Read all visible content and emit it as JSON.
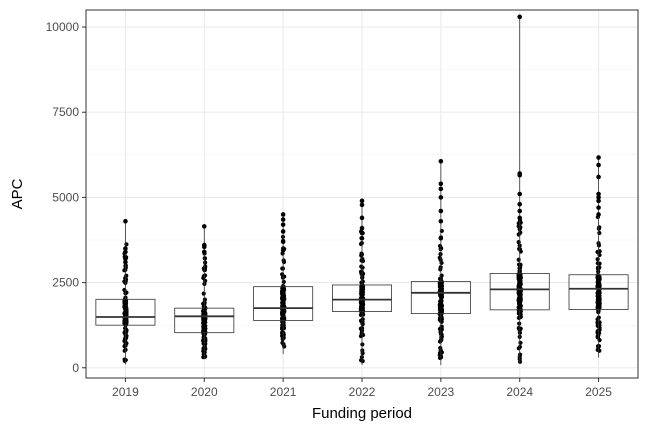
{
  "chart_data": {
    "type": "box",
    "xlabel": "Funding period",
    "ylabel": "APC",
    "ylim": [
      -300,
      10500
    ],
    "yticks": [
      0,
      2500,
      5000,
      7500,
      10000
    ],
    "ytick_labels": [
      "0",
      "2500",
      "5000",
      "7500",
      "10000"
    ],
    "grid": true,
    "categories": [
      "2019",
      "2020",
      "2021",
      "2022",
      "2023",
      "2024",
      "2025"
    ],
    "boxes": [
      {
        "category": "2019",
        "q1": 1250,
        "median": 1490,
        "q3": 2010,
        "min": 100,
        "max": 4300
      },
      {
        "category": "2020",
        "q1": 1030,
        "median": 1510,
        "q3": 1750,
        "min": 250,
        "max": 4150
      },
      {
        "category": "2021",
        "q1": 1390,
        "median": 1750,
        "q3": 2380,
        "min": 400,
        "max": 4500
      },
      {
        "category": "2022",
        "q1": 1650,
        "median": 2000,
        "q3": 2430,
        "min": 80,
        "max": 4900
      },
      {
        "category": "2023",
        "q1": 1590,
        "median": 2200,
        "q3": 2530,
        "min": 80,
        "max": 6060
      },
      {
        "category": "2024",
        "q1": 1700,
        "median": 2300,
        "q3": 2770,
        "min": 120,
        "max": 10300
      },
      {
        "category": "2025",
        "q1": 1710,
        "median": 2320,
        "q3": 2730,
        "min": 300,
        "max": 6170
      }
    ],
    "outliers": {
      "2019": [
        3500,
        3400,
        3200,
        3100
      ],
      "2020": [
        3600,
        3550,
        3400
      ],
      "2021": [
        4350,
        4200,
        4000,
        3700,
        3450
      ],
      "2022": [
        4780,
        4400,
        4100,
        3950,
        3800
      ],
      "2023": [
        5400,
        5250,
        5000,
        4600,
        4300,
        3800
      ],
      "2024": [
        5700,
        5650,
        5100,
        4800,
        4600,
        4400
      ],
      "2025": [
        5950,
        5600,
        5100,
        5000,
        4900,
        4700,
        4500
      ]
    }
  }
}
